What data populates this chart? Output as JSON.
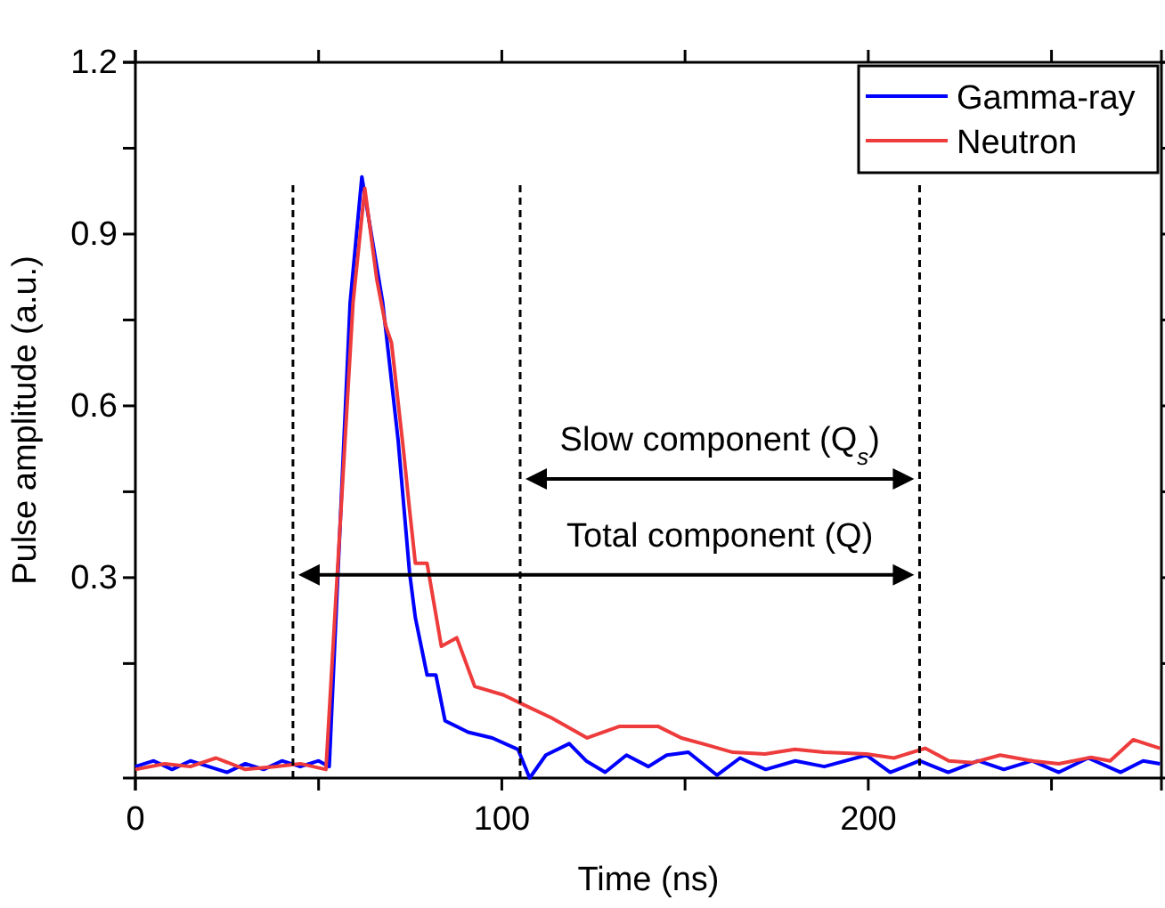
{
  "chart_data": {
    "type": "line",
    "xlabel": "Time (ns)",
    "ylabel": "Pulse amplitude (a.u.)",
    "xlim": [
      0,
      280
    ],
    "xticks": [
      0,
      {
        "value": 50,
        "label": null
      },
      100,
      {
        "value": 150,
        "label": null
      },
      200,
      {
        "value": 250,
        "label": null
      }
    ],
    "ylim": [
      -0.05,
      1.2
    ],
    "yticks": [
      {
        "value": 0.15,
        "label": null
      },
      0.3,
      {
        "value": 0.45,
        "label": null
      },
      0.6,
      {
        "value": 0.75,
        "label": null
      },
      0.9,
      {
        "value": 1.05,
        "label": null
      },
      1.2
    ],
    "legend": "top right",
    "line_style": "solid",
    "marker": "none",
    "series": [
      {
        "name": "Gamma-ray",
        "color": "#0000ff",
        "x": [
          0,
          5,
          10,
          15,
          20,
          25,
          30,
          35,
          40,
          45,
          50,
          52.9,
          58.6,
          61.8,
          67.5,
          71.7,
          74.8,
          76.4,
          79.6,
          82.0,
          84.5,
          90.8,
          97.4,
          104.4,
          107.6,
          112,
          118.4,
          123,
          128.2,
          134,
          140,
          145,
          150.9,
          158.7,
          165,
          172,
          180.1,
          188,
          199.5,
          206,
          214,
          221.8,
          230,
          237,
          244.7,
          252,
          260,
          268.9,
          275,
          279.6
        ],
        "values": [
          -0.03,
          -0.02,
          -0.035,
          -0.02,
          -0.03,
          -0.04,
          -0.025,
          -0.035,
          -0.02,
          -0.03,
          -0.02,
          -0.03,
          0.78,
          1.0,
          0.78,
          0.54,
          0.31,
          0.23,
          0.13,
          0.13,
          0.05,
          0.03,
          0.02,
          0.0,
          -0.05,
          -0.01,
          0.01,
          -0.02,
          -0.04,
          -0.01,
          -0.03,
          -0.01,
          -0.005,
          -0.045,
          -0.015,
          -0.035,
          -0.02,
          -0.03,
          -0.01,
          -0.04,
          -0.02,
          -0.04,
          -0.02,
          -0.035,
          -0.02,
          -0.04,
          -0.015,
          -0.04,
          -0.02,
          -0.025
        ]
      },
      {
        "name": "Neutron",
        "color": "#ee3b3b",
        "x": [
          0,
          8,
          15,
          22,
          30,
          38,
          45,
          52,
          59.4,
          62.6,
          65.9,
          68.3,
          69.9,
          73.2,
          74.8,
          76.4,
          79.6,
          83.5,
          87.7,
          92.6,
          100.5,
          105.3,
          113.6,
          123.3,
          132,
          142.7,
          149,
          155.8,
          163,
          171.8,
          180,
          187.9,
          199.5,
          207,
          215.5,
          222,
          228.6,
          236,
          244.7,
          252,
          260.7,
          266,
          272.3,
          279.6
        ],
        "values": [
          -0.035,
          -0.025,
          -0.03,
          -0.015,
          -0.035,
          -0.03,
          -0.025,
          -0.035,
          0.78,
          0.98,
          0.82,
          0.74,
          0.71,
          0.52,
          0.42,
          0.325,
          0.325,
          0.18,
          0.195,
          0.11,
          0.095,
          0.08,
          0.055,
          0.02,
          0.04,
          0.04,
          0.02,
          0.008,
          -0.005,
          -0.008,
          0.0,
          -0.005,
          -0.008,
          -0.015,
          0.002,
          -0.02,
          -0.023,
          -0.01,
          -0.02,
          -0.025,
          -0.014,
          -0.02,
          0.017,
          0.002
        ]
      }
    ],
    "ref_lines": [
      {
        "axis": "x",
        "value": 43,
        "color": "#000000",
        "line_style": "dashed"
      },
      {
        "axis": "x",
        "value": 105,
        "color": "#000000",
        "line_style": "dashed"
      },
      {
        "axis": "x",
        "value": 214,
        "color": "#000000",
        "line_style": "dashed"
      }
    ],
    "annotations": [
      "Slow component (Q$_{s}$)",
      "Total component (Q)"
    ]
  }
}
